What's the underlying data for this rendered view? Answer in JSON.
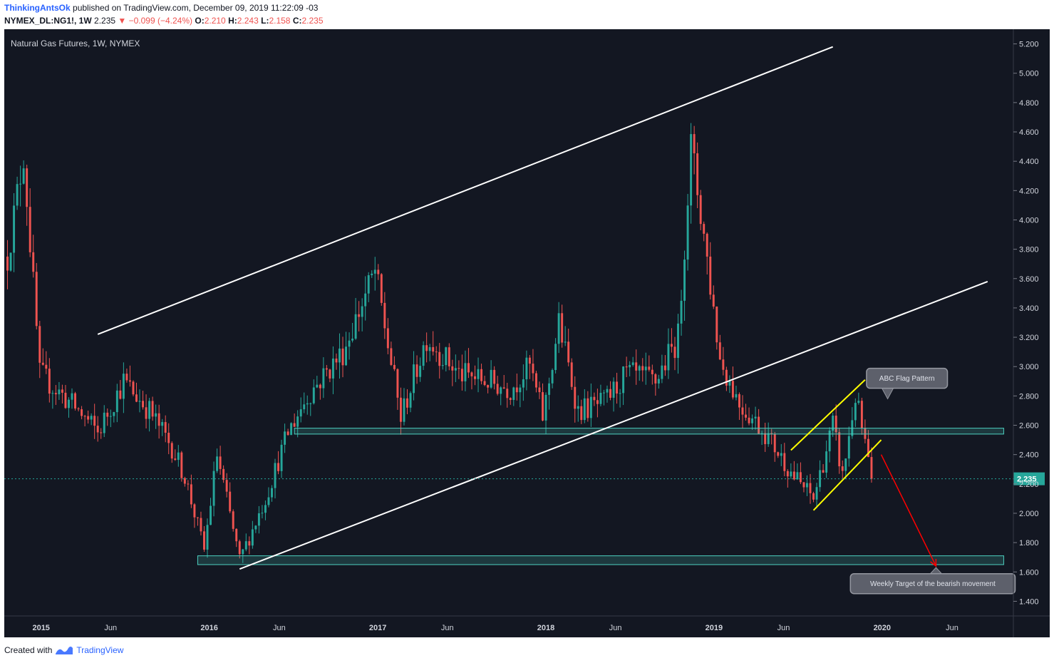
{
  "header": {
    "author": "ThinkingAntsOk",
    "published": "published on TradingView.com, December 09, 2019 11:22:09 -03",
    "symbol": "NYMEX_DL:NG1!, 1W",
    "last": "2.235",
    "change": "▼ −0.099 (−4.24%)",
    "o_label": "O:",
    "o": "2.210",
    "h_label": "H:",
    "h": "2.243",
    "l_label": "L:",
    "l": "2.158",
    "c_label": "C:",
    "c": "2.235"
  },
  "footer": {
    "created": "Created with",
    "brand": "TradingView"
  },
  "colors": {
    "background": "#131722",
    "up": "#26a69a",
    "down": "#ef5350",
    "channel": "#ffffff",
    "flag": "#ffff00",
    "zone": "#4dd0c1",
    "arrow": "#ff0000"
  },
  "chart_data": {
    "type": "candlestick",
    "title": "Natural Gas Futures, 1W, NYMEX",
    "ylim": [
      1.3,
      5.3
    ],
    "y_ticks": [
      "1.400",
      "1.600",
      "1.800",
      "2.000",
      "2.200",
      "2.400",
      "2.600",
      "2.800",
      "3.000",
      "3.200",
      "3.400",
      "3.600",
      "3.800",
      "4.000",
      "4.200",
      "4.400",
      "4.600",
      "4.800",
      "5.000",
      "5.200"
    ],
    "x_ticks": [
      {
        "label": "2015",
        "date": "2015-01-01"
      },
      {
        "label": "Jun",
        "date": "2015-06-01"
      },
      {
        "label": "2016",
        "date": "2016-01-01"
      },
      {
        "label": "Jun",
        "date": "2016-06-01"
      },
      {
        "label": "2017",
        "date": "2017-01-01"
      },
      {
        "label": "Jun",
        "date": "2017-06-01"
      },
      {
        "label": "2018",
        "date": "2018-01-01"
      },
      {
        "label": "Jun",
        "date": "2018-06-01"
      },
      {
        "label": "2019",
        "date": "2019-01-01"
      },
      {
        "label": "Jun",
        "date": "2019-06-01"
      },
      {
        "label": "2020",
        "date": "2020-01-01"
      },
      {
        "label": "Jun",
        "date": "2020-06-01"
      }
    ],
    "last_price": {
      "value": 2.235,
      "label": "2.235"
    },
    "anchors": [
      [
        "2014-10-20",
        3.75
      ],
      [
        "2014-11-24",
        4.45
      ],
      [
        "2014-12-29",
        2.95
      ],
      [
        "2015-03-23",
        2.7
      ],
      [
        "2015-05-04",
        2.55
      ],
      [
        "2015-06-29",
        2.9
      ],
      [
        "2015-08-24",
        2.7
      ],
      [
        "2015-10-12",
        2.45
      ],
      [
        "2015-11-09",
        2.25
      ],
      [
        "2015-12-21",
        1.75
      ],
      [
        "2016-01-18",
        2.4
      ],
      [
        "2016-03-07",
        1.68
      ],
      [
        "2016-05-02",
        2.1
      ],
      [
        "2016-06-20",
        2.55
      ],
      [
        "2016-08-01",
        2.8
      ],
      [
        "2016-10-17",
        3.1
      ],
      [
        "2016-12-26",
        3.65
      ],
      [
        "2017-02-20",
        2.65
      ],
      [
        "2017-04-17",
        3.2
      ],
      [
        "2017-06-26",
        2.95
      ],
      [
        "2017-08-28",
        2.9
      ],
      [
        "2017-10-16",
        2.85
      ],
      [
        "2017-11-27",
        3.0
      ],
      [
        "2017-12-26",
        2.65
      ],
      [
        "2018-01-29",
        3.3
      ],
      [
        "2018-03-12",
        2.7
      ],
      [
        "2018-05-07",
        2.75
      ],
      [
        "2018-06-25",
        2.95
      ],
      [
        "2018-08-27",
        2.9
      ],
      [
        "2018-10-15",
        3.2
      ],
      [
        "2018-11-12",
        4.5
      ],
      [
        "2018-12-10",
        3.9
      ],
      [
        "2019-01-14",
        3.05
      ],
      [
        "2019-02-25",
        2.75
      ],
      [
        "2019-04-22",
        2.55
      ],
      [
        "2019-06-24",
        2.25
      ],
      [
        "2019-08-05",
        2.1
      ],
      [
        "2019-09-16",
        2.6
      ],
      [
        "2019-10-07",
        2.25
      ],
      [
        "2019-11-04",
        2.8
      ],
      [
        "2019-12-09",
        2.235
      ]
    ],
    "lines": [
      {
        "name": "channel-upper",
        "color": "#ffffff",
        "p1": [
          "2015-05-04",
          3.22
        ],
        "p2": [
          "2019-09-16",
          5.18
        ]
      },
      {
        "name": "channel-lower",
        "color": "#ffffff",
        "p1": [
          "2016-03-07",
          1.62
        ],
        "p2": [
          "2020-08-17",
          3.58
        ]
      },
      {
        "name": "flag-upper",
        "color": "#ffff00",
        "p1": [
          "2019-06-17",
          2.43
        ],
        "p2": [
          "2019-11-25",
          2.91
        ]
      },
      {
        "name": "flag-lower",
        "color": "#ffff00",
        "p1": [
          "2019-08-05",
          2.02
        ],
        "p2": [
          "2019-12-30",
          2.5
        ]
      }
    ],
    "zones": [
      {
        "name": "support-zone-upper",
        "from": "2016-07-04",
        "to": "2020-09-21",
        "top": 2.58,
        "bottom": 2.54
      },
      {
        "name": "support-zone-lower",
        "from": "2015-12-07",
        "to": "2020-09-21",
        "top": 1.71,
        "bottom": 1.65
      }
    ],
    "arrow": {
      "from": [
        "2019-12-30",
        2.4
      ],
      "to": [
        "2020-04-27",
        1.64
      ]
    },
    "annotations": [
      {
        "name": "abc-flag-pattern-label",
        "text": "ABC Flag Pattern",
        "date": "2020-02-24",
        "value": 2.92,
        "pointer_date": "2020-01-13",
        "pointer_value": 2.78
      },
      {
        "name": "weekly-target-label",
        "text": "Weekly Target of the bearish movement",
        "date": "2020-04-20",
        "value": 1.52,
        "pointer_date": "2020-04-27",
        "pointer_value": 1.63
      }
    ]
  }
}
